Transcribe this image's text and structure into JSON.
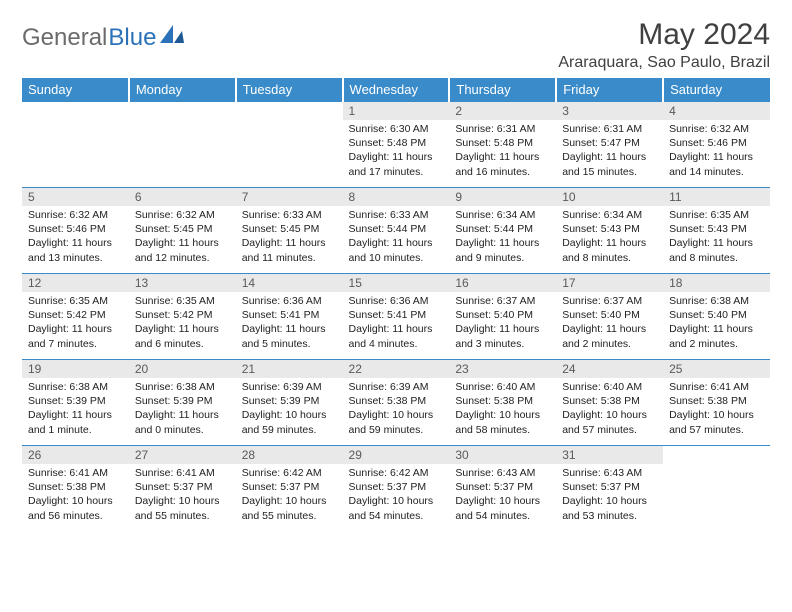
{
  "brand": {
    "part1": "General",
    "part2": "Blue"
  },
  "title": "May 2024",
  "location": "Araraquara, Sao Paulo, Brazil",
  "colors": {
    "header_bg": "#3a8bc9",
    "header_fg": "#ffffff",
    "daynum_bg": "#e9e9e9",
    "border": "#3a8bc9",
    "brand_gray": "#6b6b6b",
    "brand_blue": "#2b72b8"
  },
  "weekdays": [
    "Sunday",
    "Monday",
    "Tuesday",
    "Wednesday",
    "Thursday",
    "Friday",
    "Saturday"
  ],
  "first_weekday_index": 3,
  "days": [
    {
      "n": 1,
      "sr": "6:30 AM",
      "ss": "5:48 PM",
      "dl": "11 hours and 17 minutes."
    },
    {
      "n": 2,
      "sr": "6:31 AM",
      "ss": "5:48 PM",
      "dl": "11 hours and 16 minutes."
    },
    {
      "n": 3,
      "sr": "6:31 AM",
      "ss": "5:47 PM",
      "dl": "11 hours and 15 minutes."
    },
    {
      "n": 4,
      "sr": "6:32 AM",
      "ss": "5:46 PM",
      "dl": "11 hours and 14 minutes."
    },
    {
      "n": 5,
      "sr": "6:32 AM",
      "ss": "5:46 PM",
      "dl": "11 hours and 13 minutes."
    },
    {
      "n": 6,
      "sr": "6:32 AM",
      "ss": "5:45 PM",
      "dl": "11 hours and 12 minutes."
    },
    {
      "n": 7,
      "sr": "6:33 AM",
      "ss": "5:45 PM",
      "dl": "11 hours and 11 minutes."
    },
    {
      "n": 8,
      "sr": "6:33 AM",
      "ss": "5:44 PM",
      "dl": "11 hours and 10 minutes."
    },
    {
      "n": 9,
      "sr": "6:34 AM",
      "ss": "5:44 PM",
      "dl": "11 hours and 9 minutes."
    },
    {
      "n": 10,
      "sr": "6:34 AM",
      "ss": "5:43 PM",
      "dl": "11 hours and 8 minutes."
    },
    {
      "n": 11,
      "sr": "6:35 AM",
      "ss": "5:43 PM",
      "dl": "11 hours and 8 minutes."
    },
    {
      "n": 12,
      "sr": "6:35 AM",
      "ss": "5:42 PM",
      "dl": "11 hours and 7 minutes."
    },
    {
      "n": 13,
      "sr": "6:35 AM",
      "ss": "5:42 PM",
      "dl": "11 hours and 6 minutes."
    },
    {
      "n": 14,
      "sr": "6:36 AM",
      "ss": "5:41 PM",
      "dl": "11 hours and 5 minutes."
    },
    {
      "n": 15,
      "sr": "6:36 AM",
      "ss": "5:41 PM",
      "dl": "11 hours and 4 minutes."
    },
    {
      "n": 16,
      "sr": "6:37 AM",
      "ss": "5:40 PM",
      "dl": "11 hours and 3 minutes."
    },
    {
      "n": 17,
      "sr": "6:37 AM",
      "ss": "5:40 PM",
      "dl": "11 hours and 2 minutes."
    },
    {
      "n": 18,
      "sr": "6:38 AM",
      "ss": "5:40 PM",
      "dl": "11 hours and 2 minutes."
    },
    {
      "n": 19,
      "sr": "6:38 AM",
      "ss": "5:39 PM",
      "dl": "11 hours and 1 minute."
    },
    {
      "n": 20,
      "sr": "6:38 AM",
      "ss": "5:39 PM",
      "dl": "11 hours and 0 minutes."
    },
    {
      "n": 21,
      "sr": "6:39 AM",
      "ss": "5:39 PM",
      "dl": "10 hours and 59 minutes."
    },
    {
      "n": 22,
      "sr": "6:39 AM",
      "ss": "5:38 PM",
      "dl": "10 hours and 59 minutes."
    },
    {
      "n": 23,
      "sr": "6:40 AM",
      "ss": "5:38 PM",
      "dl": "10 hours and 58 minutes."
    },
    {
      "n": 24,
      "sr": "6:40 AM",
      "ss": "5:38 PM",
      "dl": "10 hours and 57 minutes."
    },
    {
      "n": 25,
      "sr": "6:41 AM",
      "ss": "5:38 PM",
      "dl": "10 hours and 57 minutes."
    },
    {
      "n": 26,
      "sr": "6:41 AM",
      "ss": "5:38 PM",
      "dl": "10 hours and 56 minutes."
    },
    {
      "n": 27,
      "sr": "6:41 AM",
      "ss": "5:37 PM",
      "dl": "10 hours and 55 minutes."
    },
    {
      "n": 28,
      "sr": "6:42 AM",
      "ss": "5:37 PM",
      "dl": "10 hours and 55 minutes."
    },
    {
      "n": 29,
      "sr": "6:42 AM",
      "ss": "5:37 PM",
      "dl": "10 hours and 54 minutes."
    },
    {
      "n": 30,
      "sr": "6:43 AM",
      "ss": "5:37 PM",
      "dl": "10 hours and 54 minutes."
    },
    {
      "n": 31,
      "sr": "6:43 AM",
      "ss": "5:37 PM",
      "dl": "10 hours and 53 minutes."
    }
  ],
  "labels": {
    "sunrise": "Sunrise:",
    "sunset": "Sunset:",
    "daylight": "Daylight:"
  }
}
